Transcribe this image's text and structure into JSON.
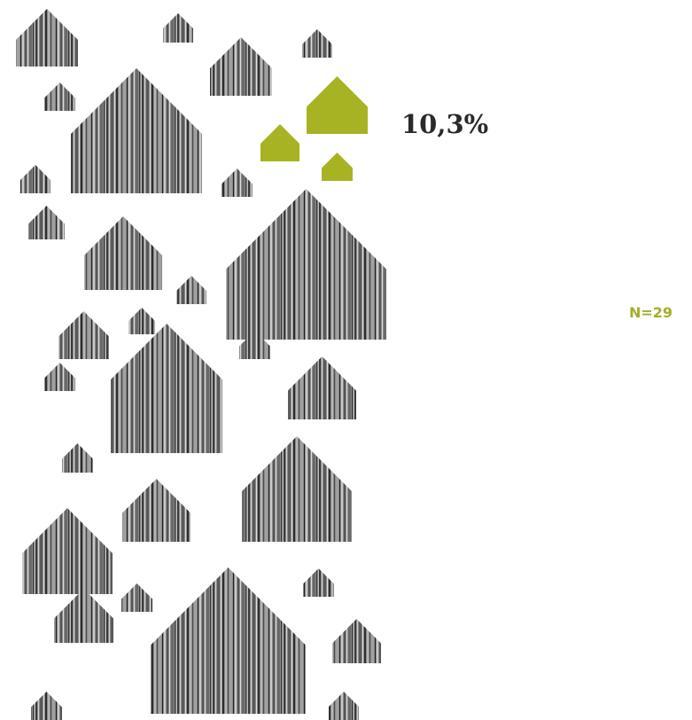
{
  "highlight_label": "10,3%",
  "sample_label": "N=29"
}
